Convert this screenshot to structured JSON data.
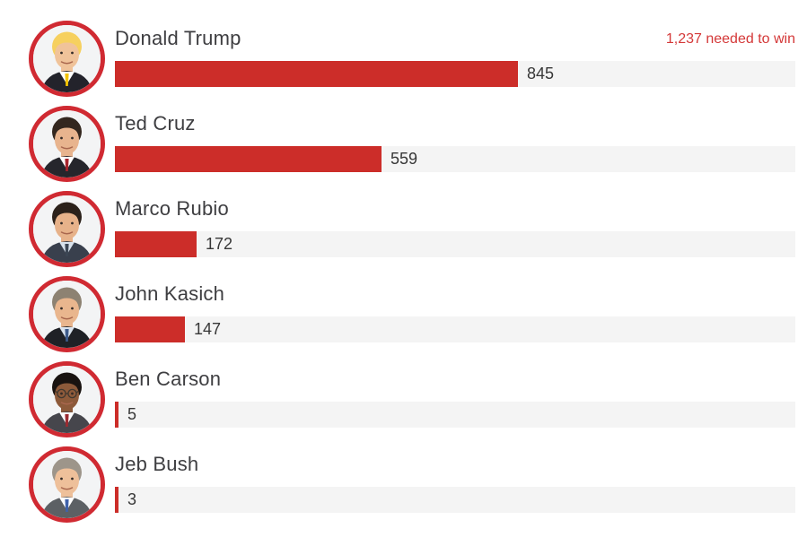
{
  "header": {
    "needed_to_win": "1,237 needed to win"
  },
  "colors": {
    "bar_red": "#cc2d29",
    "avatar_ring_red": "#d02a32",
    "track_gray": "#f4f4f4",
    "name_text": "#3e3e41",
    "value_text": "#373737",
    "needed_text": "#d43838",
    "background": "#ffffff"
  },
  "chart_data": {
    "type": "bar",
    "orientation": "horizontal",
    "title": "",
    "xlabel": "",
    "ylabel": "",
    "categories": [
      "Donald Trump",
      "Ted Cruz",
      "Marco Rubio",
      "John Kasich",
      "Ben Carson",
      "Jeb Bush"
    ],
    "values": [
      845,
      559,
      172,
      147,
      5,
      3
    ],
    "value_labels": [
      "845",
      "559",
      "172",
      "147",
      "5",
      "3"
    ],
    "annotations": [
      "1,237 needed to win"
    ],
    "xlim_estimated": [
      0,
      1427
    ],
    "grid": false,
    "legend": "none"
  },
  "avatars": [
    {
      "person": "Donald Trump",
      "skin": "#f0c39a",
      "hair": "#f6d05f",
      "suit": "#23232b",
      "shirt": "#ffffff",
      "tie": "#f2c200",
      "glasses": false
    },
    {
      "person": "Ted Cruz",
      "skin": "#e8b48e",
      "hair": "#33271f",
      "suit": "#26262c",
      "shirt": "#ffffff",
      "tie": "#a6242c",
      "glasses": false
    },
    {
      "person": "Marco Rubio",
      "skin": "#e7b28a",
      "hair": "#2b211a",
      "suit": "#39404d",
      "shirt": "#d8e2ec",
      "tie": "#3c4654",
      "glasses": false
    },
    {
      "person": "John Kasich",
      "skin": "#e9b68e",
      "hair": "#8d8272",
      "suit": "#1f2126",
      "shirt": "#dbe4ee",
      "tie": "#3c5a8a",
      "glasses": false
    },
    {
      "person": "Ben Carson",
      "skin": "#8d5a3a",
      "hair": "#191310",
      "suit": "#46464c",
      "shirt": "#ffffff",
      "tie": "#9c2b31",
      "glasses": true
    },
    {
      "person": "Jeb Bush",
      "skin": "#eec09a",
      "hair": "#9d958a",
      "suit": "#5c6064",
      "shirt": "#ffffff",
      "tie": "#3f62aa",
      "glasses": false
    }
  ],
  "layout_note_values_are_data_not_layout": "row pitch 95px derived in script"
}
